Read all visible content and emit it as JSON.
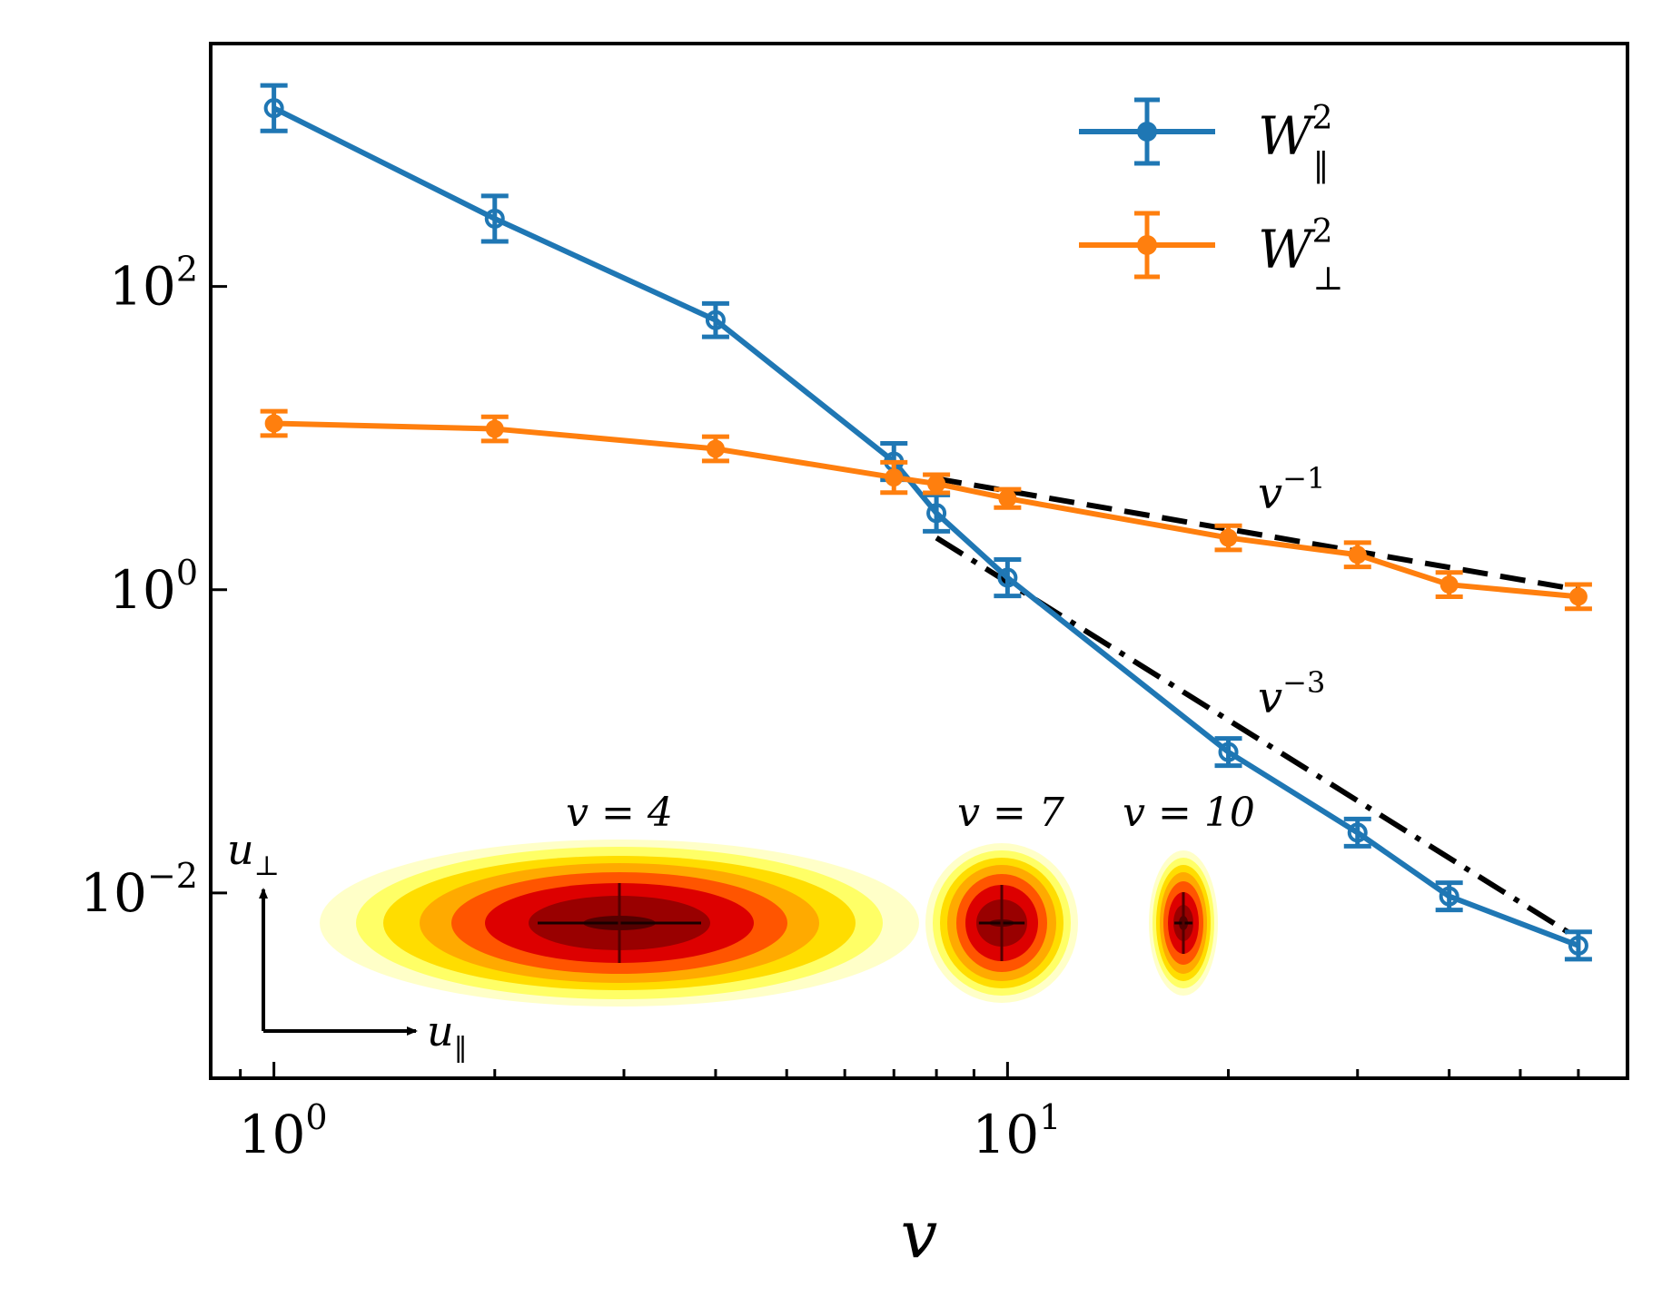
{
  "chart_data": {
    "type": "line",
    "title": "",
    "xlabel": "v",
    "ylabel": "",
    "xscale": "log",
    "yscale": "log",
    "xlim": [
      0.82,
      70
    ],
    "ylim": [
      0.0006,
      4000
    ],
    "grid": false,
    "legend_position": "top-right",
    "x_ticks": [
      {
        "value": 1,
        "base": "10",
        "exp": "0"
      },
      {
        "value": 10,
        "base": "10",
        "exp": "1"
      }
    ],
    "y_ticks": [
      {
        "value": 100,
        "base": "10",
        "exp": "2"
      },
      {
        "value": 1,
        "base": "10",
        "exp": "0"
      },
      {
        "value": 0.01,
        "base": "10",
        "exp": "−2"
      }
    ],
    "x": [
      1,
      2,
      4,
      7,
      8,
      10,
      20,
      30,
      40,
      60
    ],
    "series": [
      {
        "name_base": "W",
        "name_sup": "2",
        "name_sub": "‖",
        "color": "#1f77b4",
        "x": [
          1,
          2,
          4,
          7,
          8,
          10,
          20,
          30,
          40,
          60
        ],
        "values": [
          1500,
          280,
          60,
          7.0,
          3.2,
          1.2,
          0.085,
          0.025,
          0.0095,
          0.0045
        ],
        "err": [
          0.15,
          0.15,
          0.11,
          0.12,
          0.12,
          0.12,
          0.09,
          0.09,
          0.09,
          0.09
        ]
      },
      {
        "name_base": "W",
        "name_sup": "2",
        "name_sub": "⊥",
        "color": "#ff7f0e",
        "x": [
          1,
          2,
          4,
          7,
          8,
          10,
          20,
          30,
          40,
          60
        ],
        "values": [
          12.5,
          11.5,
          8.5,
          5.5,
          5.0,
          4.0,
          2.2,
          1.7,
          1.08,
          0.9
        ],
        "err": [
          0.08,
          0.08,
          0.08,
          0.1,
          0.06,
          0.06,
          0.08,
          0.08,
          0.08,
          0.08
        ]
      }
    ],
    "reference_lines": [
      {
        "label_base": "v",
        "label_exp": "−1",
        "style": "dashed",
        "x": [
          8,
          60
        ],
        "y": [
          5.4,
          1.0
        ]
      },
      {
        "label_base": "v",
        "label_exp": "−3",
        "style": "dashdot",
        "x": [
          8,
          60
        ],
        "y": [
          2.2,
          0.005
        ]
      }
    ],
    "inset": {
      "axis_x_label_base": "u",
      "axis_x_label_sub": "‖",
      "axis_y_label_base": "u",
      "axis_y_label_sub": "⊥",
      "distributions": [
        {
          "label": "v = 4"
        },
        {
          "label": "v = 7"
        },
        {
          "label": "v = 10"
        }
      ],
      "colors": [
        "#ffffc8",
        "#ffff66",
        "#ffdd00",
        "#ffaa00",
        "#ff5500",
        "#dd0000",
        "#990000",
        "#550000"
      ]
    }
  }
}
